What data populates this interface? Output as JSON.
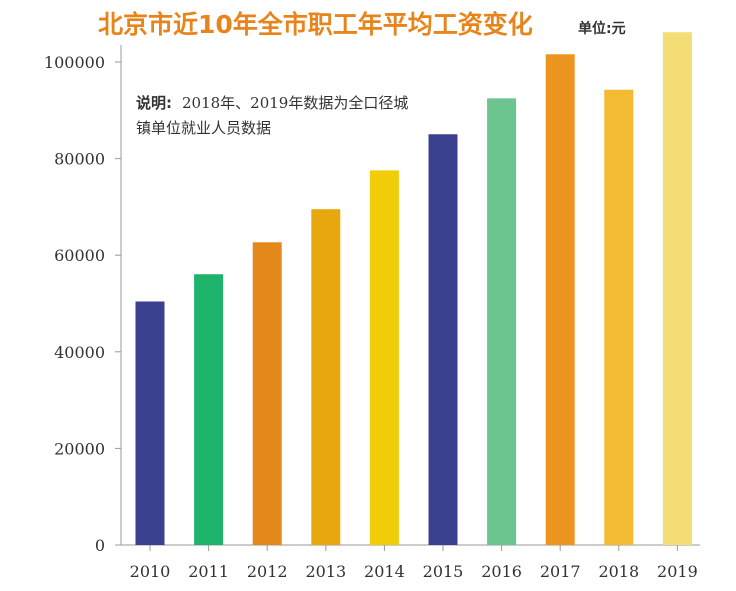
{
  "chart_data": {
    "type": "bar",
    "title": "北京市近10年全市职工年平均工资变化",
    "unit": "单位:元",
    "categories": [
      "2010",
      "2011",
      "2012",
      "2013",
      "2014",
      "2015",
      "2016",
      "2017",
      "2018",
      "2019"
    ],
    "values": [
      50415,
      56061,
      62677,
      69521,
      77560,
      85038,
      92477,
      101599,
      94258,
      106168
    ],
    "colors": [
      "#3a3f8e",
      "#1db36b",
      "#e5881b",
      "#e9a70f",
      "#f0cc09",
      "#3a3f8e",
      "#6cc48e",
      "#ec9420",
      "#f3ba34",
      "#f3dd74"
    ],
    "ylim": [
      0,
      110000
    ],
    "yticks": [
      "0",
      "20000",
      "40000",
      "60000",
      "80000",
      "100000"
    ],
    "ytick_values": [
      0,
      20000,
      40000,
      60000,
      80000,
      100000
    ],
    "note": {
      "label": "说明:",
      "line1": "2018年、2019年数据为全口径城",
      "line2": "镇单位就业人员数据"
    }
  }
}
